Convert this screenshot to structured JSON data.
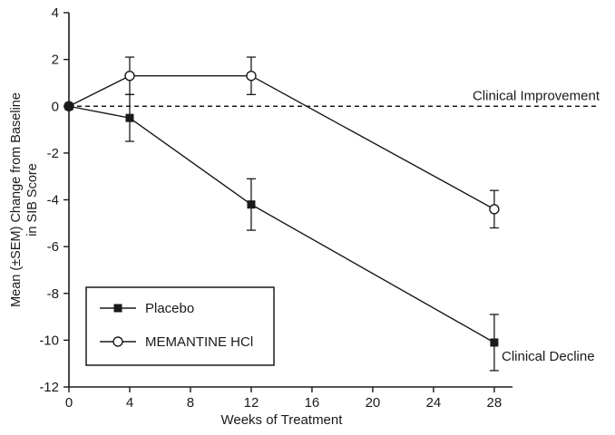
{
  "chart_data": {
    "type": "line",
    "title": "",
    "xlabel": "Weeks of Treatment",
    "ylabel_lines": [
      "Mean (±SEM) Change from Baseline",
      "in SIB Score"
    ],
    "x": [
      0,
      4,
      12,
      28
    ],
    "series": [
      {
        "name": "MEMANTINE HCl",
        "marker": "open-circle",
        "values": [
          0,
          1.3,
          1.3,
          -4.4
        ],
        "sem": [
          0,
          0.8,
          0.8,
          0.8
        ]
      },
      {
        "name": "Placebo",
        "marker": "filled-square",
        "values": [
          0,
          -0.5,
          -4.2,
          -10.1
        ],
        "sem": [
          0,
          1.0,
          1.1,
          1.2
        ]
      }
    ],
    "xticks": [
      0,
      4,
      8,
      12,
      16,
      20,
      24,
      28
    ],
    "yticks": [
      4,
      2,
      0,
      -2,
      -4,
      -6,
      -8,
      -10,
      -12
    ],
    "xlim": [
      0,
      29.2
    ],
    "ylim": [
      -12,
      4
    ],
    "grid": false,
    "reference_line": {
      "y": 0,
      "style": "dashed"
    },
    "annotations": [
      {
        "id": "clinical-improvement",
        "text": "Clinical Improvement"
      },
      {
        "id": "clinical-decline",
        "text": "Clinical Decline"
      }
    ],
    "legend": {
      "position": "bottom-left",
      "entries": [
        {
          "label": "Placebo",
          "marker": "filled-square"
        },
        {
          "label": "MEMANTINE HCl",
          "marker": "open-circle"
        }
      ]
    },
    "colors": {
      "line": "#1a1a1a",
      "background": "#ffffff"
    }
  }
}
